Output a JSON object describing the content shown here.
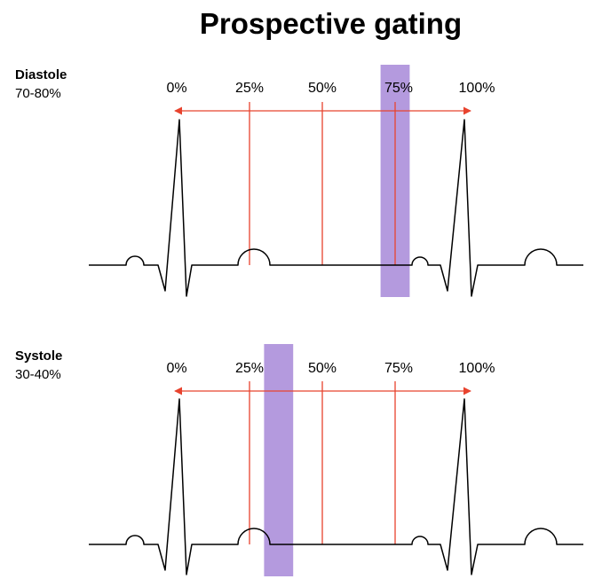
{
  "title": "Prospective gating",
  "panels": [
    {
      "name": "Diastole",
      "range": "70-80%",
      "window_percent": [
        70,
        80
      ],
      "tick_labels": [
        "0%",
        "25%",
        "50%",
        "75%",
        "100%"
      ],
      "marker_percents": [
        25,
        50,
        75
      ]
    },
    {
      "name": "Systole",
      "range": "30-40%",
      "window_percent": [
        30,
        40
      ],
      "tick_labels": [
        "0%",
        "25%",
        "50%",
        "75%",
        "100%"
      ],
      "marker_percents": [
        25,
        50,
        75
      ]
    }
  ],
  "colors": {
    "window": "#b49ade",
    "marker": "#e8432e",
    "trace": "#000000"
  }
}
